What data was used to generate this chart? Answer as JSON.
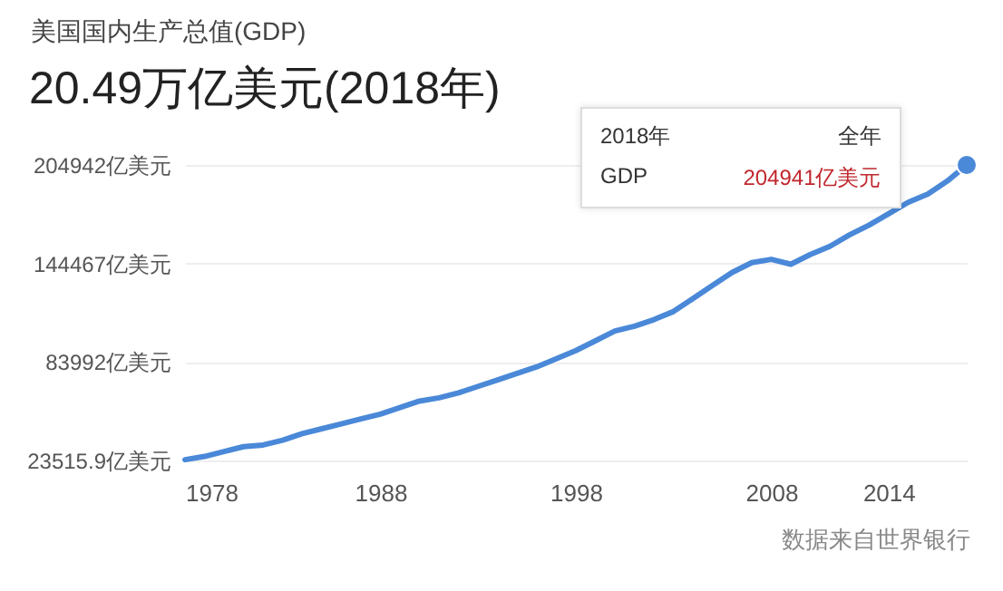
{
  "chart_data": {
    "type": "line",
    "title": "美国国内生产总值(GDP)",
    "subtitle": "20.49万亿美元(2018年)",
    "x": [
      1978,
      1979,
      1980,
      1981,
      1982,
      1983,
      1984,
      1985,
      1986,
      1987,
      1988,
      1989,
      1990,
      1991,
      1992,
      1993,
      1994,
      1995,
      1996,
      1997,
      1998,
      1999,
      2000,
      2001,
      2002,
      2003,
      2004,
      2005,
      2006,
      2007,
      2008,
      2009,
      2010,
      2011,
      2012,
      2013,
      2014,
      2015,
      2016,
      2017,
      2018
    ],
    "series": [
      {
        "color": "#4a88d8",
        "values": [
          24000,
          26000,
          29000,
          32000,
          33000,
          36000,
          40000,
          43000,
          46000,
          49000,
          52000,
          56000,
          60000,
          62000,
          65000,
          69000,
          73000,
          77000,
          81000,
          86000,
          91000,
          97000,
          103000,
          106000,
          110000,
          115000,
          123000,
          131000,
          139000,
          145000,
          147000,
          144000,
          150000,
          155000,
          162000,
          168000,
          175000,
          182000,
          187000,
          195000,
          204941
        ]
      }
    ],
    "xlim": [
      1978,
      2018
    ],
    "xticks": [
      1978,
      1988,
      1998,
      2008,
      2014
    ],
    "ylim": [
      23515.9,
      204942
    ],
    "yticks": [
      {
        "value": 23515.9,
        "label": "23515.9亿美元"
      },
      {
        "value": 83992,
        "label": "83992亿美元"
      },
      {
        "value": 144467,
        "label": "144467亿美元"
      },
      {
        "value": 204942,
        "label": "204942亿美元"
      }
    ],
    "grid": "y",
    "marker": "none",
    "line_style": "solid",
    "annotations": [
      "2018年",
      "全年",
      "GDP",
      "204941亿美元",
      "数据来自世界银行"
    ]
  }
}
